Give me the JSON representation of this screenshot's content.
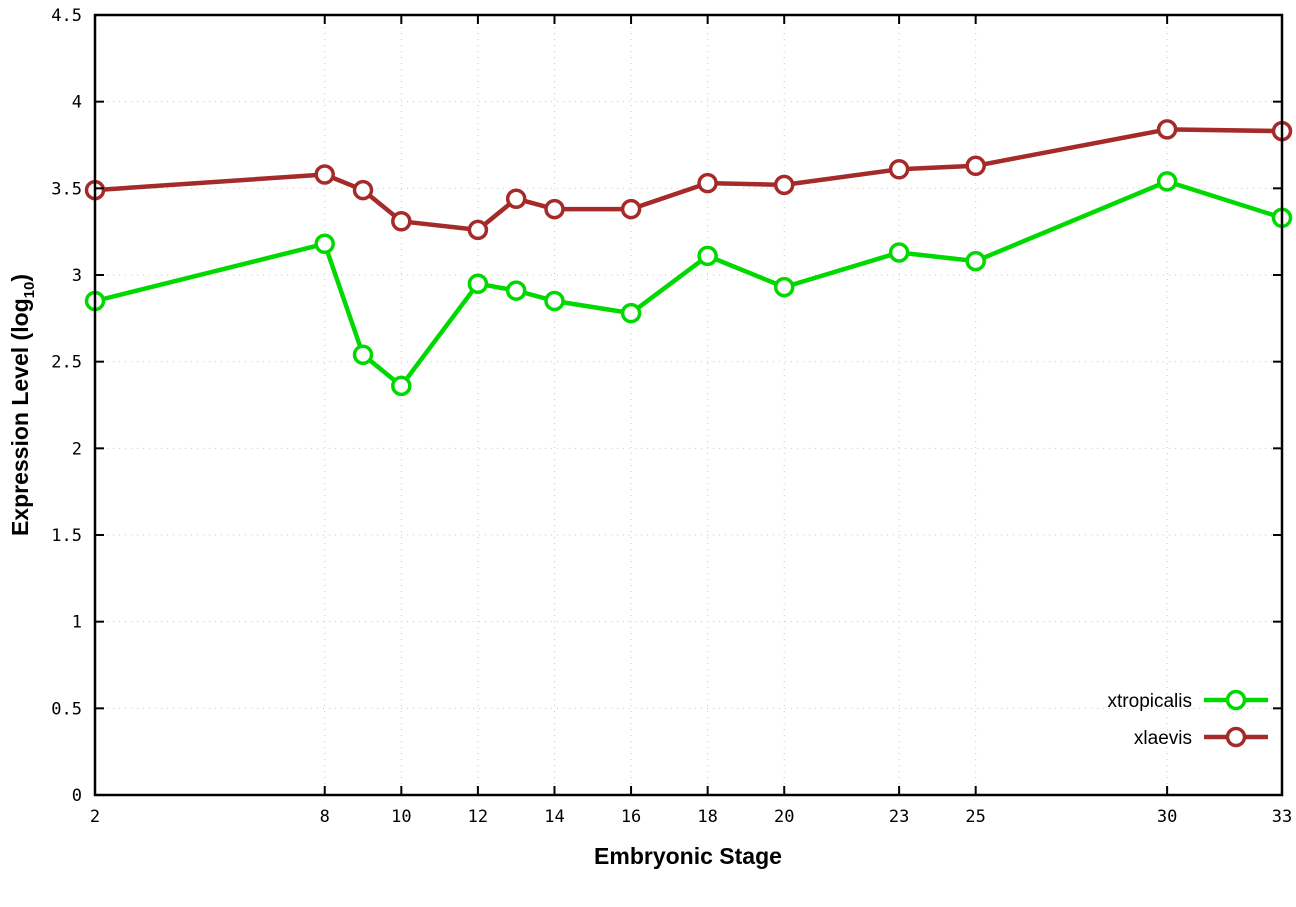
{
  "chart_data": {
    "type": "line",
    "title": "",
    "xlabel": "Embryonic Stage",
    "ylabel": "Expression Level (log10)",
    "ylabel_text": "Expression Level (log",
    "ylabel_sub": "10",
    "ylabel_suffix": ")",
    "x": [
      2,
      8,
      9,
      10,
      12,
      13,
      14,
      16,
      18,
      20,
      23,
      25,
      30,
      33
    ],
    "series": [
      {
        "name": "xtropicalis",
        "color": "#00d900",
        "values": [
          2.85,
          3.18,
          2.54,
          2.36,
          2.95,
          2.91,
          2.85,
          2.78,
          3.11,
          2.93,
          3.13,
          3.08,
          3.54,
          3.33
        ]
      },
      {
        "name": "xlaevis",
        "color": "#a52a2a",
        "values": [
          3.49,
          3.58,
          3.49,
          3.31,
          3.26,
          3.44,
          3.38,
          3.38,
          3.53,
          3.52,
          3.61,
          3.63,
          3.84,
          3.83
        ]
      }
    ],
    "xticks": [
      2,
      8,
      10,
      12,
      14,
      16,
      18,
      20,
      23,
      25,
      30,
      33
    ],
    "yticks": [
      0,
      0.5,
      1,
      1.5,
      2,
      2.5,
      3,
      3.5,
      4,
      4.5
    ],
    "xlim": [
      2,
      33
    ],
    "ylim": [
      0,
      4.5
    ],
    "legend_position": "bottom-right-inside",
    "grid": true,
    "background": "#ffffff",
    "axis_color": "#000000",
    "marker": "open-circle"
  }
}
